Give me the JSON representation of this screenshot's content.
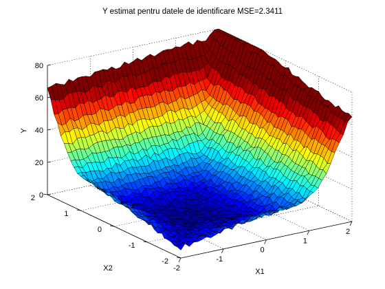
{
  "chart_data": {
    "type": "surface",
    "title": "Y estimat pentru datele de identificare MSE=2.3411",
    "xlabel": "X1",
    "ylabel": "X2",
    "zlabel": "Y",
    "xlim": [
      -2,
      2
    ],
    "ylim": [
      -2,
      2
    ],
    "zlim": [
      0,
      80
    ],
    "x_ticks": [
      "-2",
      "-1",
      "0",
      "1",
      "2"
    ],
    "y_ticks": [
      "-2",
      "-1",
      "0",
      "1",
      "2"
    ],
    "z_ticks": [
      "0",
      "20",
      "40",
      "60",
      "80"
    ],
    "grid": true,
    "colormap": "jet",
    "corner_values": [
      {
        "x1": -2,
        "x2": 2,
        "y": 60
      },
      {
        "x1": 2,
        "x2": 2,
        "y": 70
      },
      {
        "x1": -2,
        "x2": -2,
        "y": 12
      },
      {
        "x1": 2,
        "x2": -2,
        "y": 52
      }
    ],
    "minimum": {
      "x1": -0.5,
      "x2": -0.4,
      "y": 2
    }
  }
}
